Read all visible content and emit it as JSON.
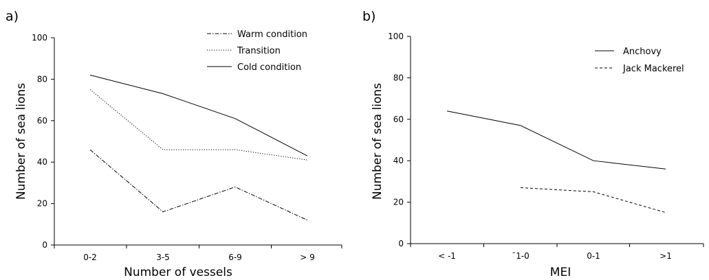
{
  "chart_data": [
    {
      "type": "line",
      "panel_label": "a)",
      "xlabel": "Number of vessels",
      "ylabel": "Number of sea lions",
      "categories": [
        "0-2",
        "3-5",
        "6-9",
        "> 9"
      ],
      "ylim": [
        0,
        100
      ],
      "yticks": [
        "0",
        "20",
        "40",
        "60",
        "80",
        "100"
      ],
      "grid": false,
      "legend_position": "top-right",
      "series": [
        {
          "name": "Warm condition",
          "dash": "dashdot",
          "values": [
            46,
            16,
            28,
            12
          ]
        },
        {
          "name": "Transition",
          "dash": "dotted",
          "values": [
            75,
            46,
            46,
            41
          ]
        },
        {
          "name": "Cold condition",
          "dash": "solid",
          "values": [
            82,
            73,
            61,
            43
          ]
        }
      ]
    },
    {
      "type": "line",
      "panel_label": "b)",
      "xlabel": "MEI",
      "ylabel": "Number of sea lions",
      "categories": [
        "< -1",
        "¯1-0",
        "0-1",
        ">1"
      ],
      "ylim": [
        0,
        100
      ],
      "yticks": [
        "0",
        "20",
        "40",
        "60",
        "80",
        "100"
      ],
      "grid": false,
      "legend_position": "top-right",
      "series": [
        {
          "name": "Anchovy",
          "dash": "solid",
          "values": [
            64,
            57,
            40,
            36
          ]
        },
        {
          "name": "Jack Mackerel",
          "dash": "dashed",
          "values": [
            null,
            27,
            25,
            15
          ]
        }
      ]
    }
  ]
}
